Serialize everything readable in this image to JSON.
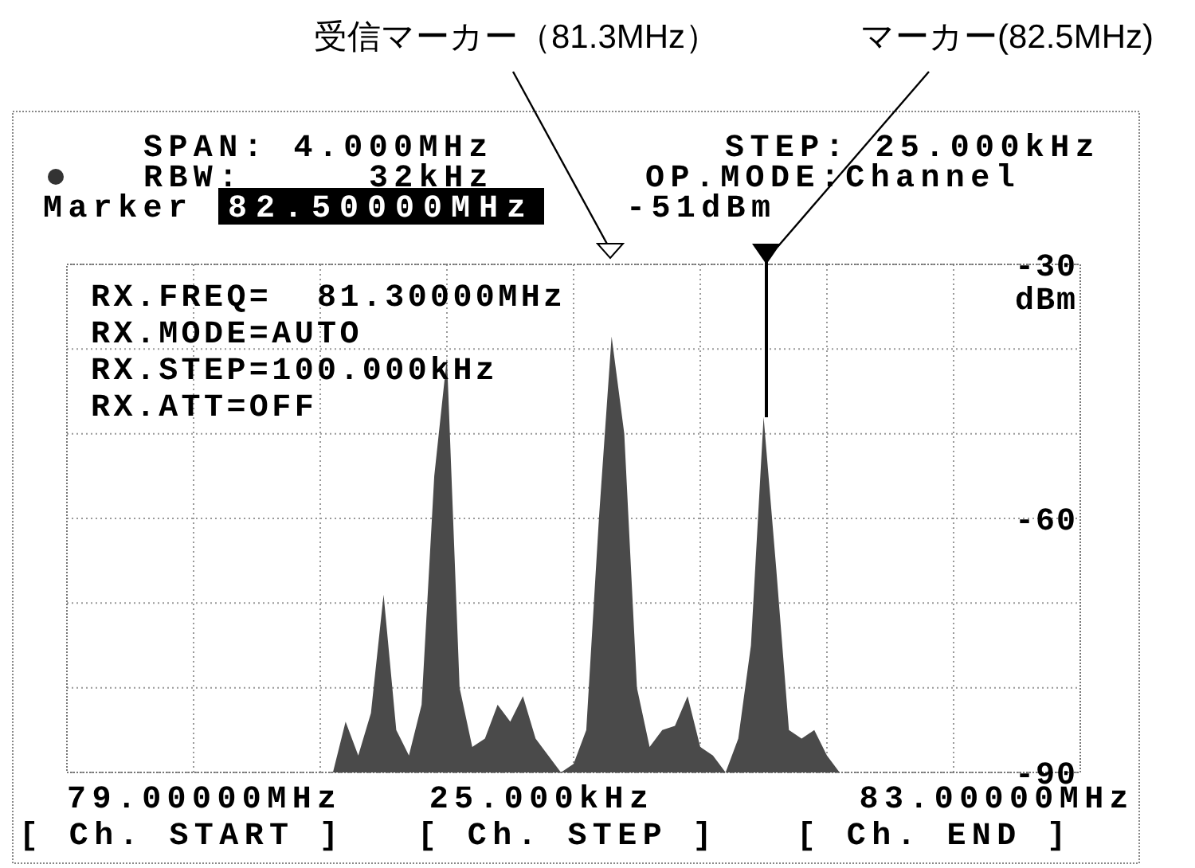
{
  "chart_data": {
    "type": "area",
    "ylabel": "dBm",
    "ylim": [
      -90,
      -30
    ],
    "yticks": [
      -30,
      {
        "value": -40,
        "label": null
      },
      {
        "value": -50,
        "label": null
      },
      -60,
      {
        "value": -70,
        "label": null
      },
      {
        "value": -80,
        "label": null
      },
      -90
    ],
    "grid": true,
    "categories": [
      null,
      null,
      null,
      null,
      null,
      null,
      null,
      null,
      null,
      null,
      null,
      null,
      null,
      null,
      null,
      null,
      null,
      null,
      null,
      null,
      null,
      null,
      null,
      null,
      null,
      null,
      null,
      null,
      null,
      null,
      null,
      null,
      null,
      null,
      null,
      null,
      null,
      null,
      null,
      null,
      null,
      null,
      null,
      null,
      null,
      null,
      null,
      null,
      null,
      null,
      null,
      null,
      null,
      null,
      null,
      null,
      null,
      null,
      null,
      null,
      null,
      null,
      null,
      null,
      null,
      null,
      null,
      null,
      null,
      null,
      null,
      null,
      null,
      null,
      null,
      null,
      null,
      null,
      null,
      null,
      null
    ],
    "series": [
      {
        "color": "#4a4a4a",
        "values": [
          -90,
          -90,
          -90,
          -90,
          -90,
          -90,
          -90,
          -90,
          -90,
          -90,
          -90,
          -90,
          -90,
          -90,
          -90,
          -90,
          -90,
          -90,
          -90,
          -90,
          -90,
          -90,
          -84,
          -88,
          -83,
          -69,
          -85,
          -88,
          -82,
          -55,
          -41,
          -80,
          -87,
          -86,
          -82,
          -84,
          -81,
          -86,
          -88,
          -90,
          -89,
          -85,
          -60,
          -38.5,
          -50,
          -80,
          -87,
          -85,
          -84.5,
          -81,
          -87,
          -88,
          -90,
          -86,
          -75,
          -48,
          -66,
          -85,
          -86,
          -85,
          -88,
          -90,
          -90,
          -90,
          -90,
          -90,
          -90,
          -90,
          -90,
          -90,
          -90,
          -90,
          -90,
          -90,
          -90,
          -90,
          -90,
          -90,
          -90,
          -90,
          -90
        ]
      }
    ],
    "annotations": [
      "受信マーカー（81.3MHz）",
      "マーカー(82.5MHz)",
      "SPAN: 4.000MHz",
      "STEP: 25.000kHz",
      "RBW:",
      "32kHz",
      "OP.MODE:Channel",
      "Marker",
      "82.50000MHz",
      "-51dBm",
      "RX.FREQ=  81.30000MHz",
      "RX.MODE=AUTO",
      "RX.STEP=100.000kHz",
      "RX.ATT=OFF",
      "79.00000MHz",
      "25.000kHz",
      "83.00000MHz",
      "[ Ch. START ]",
      "[ Ch. STEP ]",
      "[ Ch. END ]"
    ]
  }
}
